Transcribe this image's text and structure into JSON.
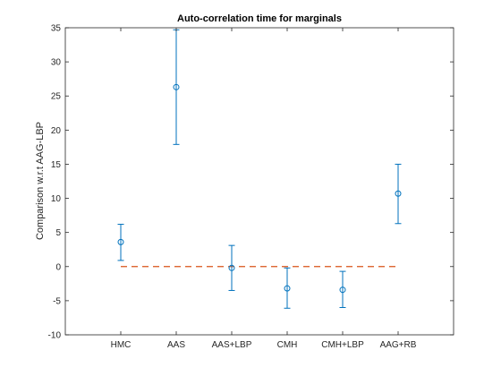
{
  "chart_data": {
    "type": "scatter",
    "title": "Auto-correlation time for marginals",
    "xlabel": "",
    "ylabel": "Comparison w.r.t AAG-LBP",
    "categories": [
      "HMC",
      "AAS",
      "AAS+LBP",
      "CMH",
      "CMH+LBP",
      "AAG+RB"
    ],
    "series": [
      {
        "values": [
          3.6,
          26.3,
          -0.2,
          -3.2,
          -3.4,
          10.7
        ],
        "lower": [
          0.9,
          17.9,
          -3.5,
          -6.1,
          -6.0,
          6.3
        ],
        "upper": [
          6.2,
          34.7,
          3.1,
          -0.2,
          -0.7,
          15.0
        ],
        "marker": "circle",
        "color": "#0072bd"
      }
    ],
    "reference_line": {
      "y": 0,
      "style": "dashed",
      "color": "#d95319"
    },
    "ylim": [
      -10,
      35
    ],
    "yticks": [
      -10,
      -5,
      0,
      5,
      10,
      15,
      20,
      25,
      30,
      35
    ],
    "grid": false,
    "legend": "none"
  }
}
